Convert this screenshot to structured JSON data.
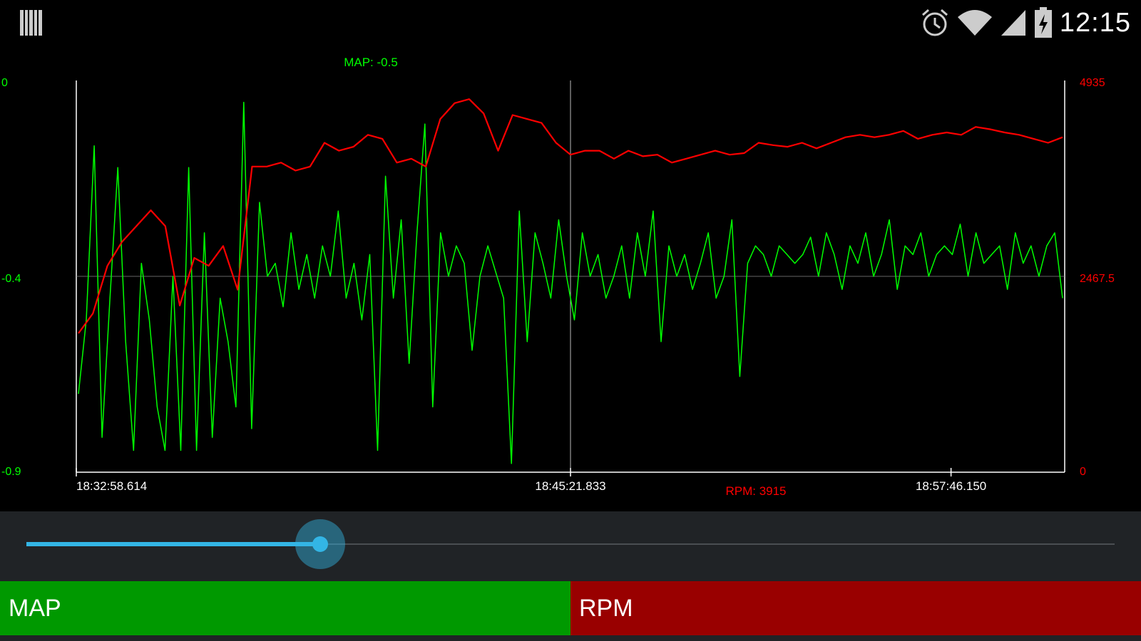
{
  "status_bar": {
    "time": "12:15",
    "icons": [
      "barcode-icon",
      "alarm-icon",
      "wifi-icon",
      "signal-icon",
      "battery-charging-icon"
    ],
    "colors": {
      "background": "#000000",
      "icon": "#cccccc"
    }
  },
  "chart_data": {
    "type": "line",
    "x_ticks": [
      "18:32:58.614",
      "18:45:21.833",
      "18:57:46.150"
    ],
    "left_axis": {
      "ticks": [
        "0",
        "-0.4",
        "-0.9"
      ],
      "ylim": [
        -0.9,
        0
      ],
      "color": "#00ff00"
    },
    "right_axis": {
      "ticks": [
        "4935",
        "2467.5",
        "0"
      ],
      "ylim": [
        0,
        4935
      ],
      "color": "#ff0000"
    },
    "cursor_labels": {
      "map": "MAP: -0.5",
      "rpm": "RPM: 3915"
    },
    "series": [
      {
        "name": "MAP",
        "color": "#00ff00",
        "axis": "left",
        "values": [
          -0.72,
          -0.55,
          -0.15,
          -0.82,
          -0.5,
          -0.2,
          -0.6,
          -0.85,
          -0.42,
          -0.55,
          -0.75,
          -0.85,
          -0.45,
          -0.85,
          -0.2,
          -0.85,
          -0.35,
          -0.82,
          -0.5,
          -0.6,
          -0.75,
          -0.05,
          -0.8,
          -0.28,
          -0.45,
          -0.42,
          -0.52,
          -0.35,
          -0.48,
          -0.4,
          -0.5,
          -0.38,
          -0.45,
          -0.3,
          -0.5,
          -0.42,
          -0.55,
          -0.4,
          -0.85,
          -0.22,
          -0.5,
          -0.32,
          -0.65,
          -0.35,
          -0.1,
          -0.75,
          -0.35,
          -0.45,
          -0.38,
          -0.42,
          -0.62,
          -0.45,
          -0.38,
          -0.44,
          -0.5,
          -0.88,
          -0.3,
          -0.6,
          -0.35,
          -0.42,
          -0.5,
          -0.32,
          -0.45,
          -0.55,
          -0.35,
          -0.45,
          -0.4,
          -0.5,
          -0.45,
          -0.38,
          -0.5,
          -0.35,
          -0.45,
          -0.3,
          -0.6,
          -0.38,
          -0.45,
          -0.4,
          -0.48,
          -0.42,
          -0.35,
          -0.5,
          -0.45,
          -0.32,
          -0.68,
          -0.42,
          -0.38,
          -0.4,
          -0.45,
          -0.38,
          -0.4,
          -0.42,
          -0.4,
          -0.36,
          -0.45,
          -0.35,
          -0.4,
          -0.48,
          -0.38,
          -0.42,
          -0.35,
          -0.45,
          -0.4,
          -0.32,
          -0.48,
          -0.38,
          -0.4,
          -0.35,
          -0.45,
          -0.4,
          -0.38,
          -0.4,
          -0.33,
          -0.45,
          -0.35,
          -0.42,
          -0.4,
          -0.38,
          -0.48,
          -0.35,
          -0.42,
          -0.38,
          -0.45,
          -0.38,
          -0.35,
          -0.5
        ]
      },
      {
        "name": "RPM",
        "color": "#ff0000",
        "axis": "right",
        "values": [
          1750,
          2000,
          2600,
          2900,
          3100,
          3300,
          3100,
          2100,
          2700,
          2600,
          2850,
          2300,
          3850,
          3850,
          3900,
          3800,
          3850,
          4150,
          4050,
          4100,
          4250,
          4200,
          3900,
          3950,
          3850,
          4450,
          4650,
          4700,
          4520,
          4050,
          4500,
          4450,
          4400,
          4150,
          4000,
          4050,
          4050,
          3950,
          4050,
          3980,
          4000,
          3900,
          3950,
          4000,
          4050,
          4000,
          4020,
          4150,
          4120,
          4100,
          4150,
          4080,
          4150,
          4220,
          4250,
          4220,
          4250,
          4300,
          4200,
          4250,
          4280,
          4250,
          4350,
          4320,
          4280,
          4250,
          4200,
          4150,
          4220
        ]
      }
    ]
  },
  "slider": {
    "value": 0.27,
    "colors": {
      "track": "#4a4e52",
      "fill": "#33b5e5"
    }
  },
  "tabs": [
    {
      "label": "MAP",
      "color": "#009900"
    },
    {
      "label": "RPM",
      "color": "#990000"
    }
  ]
}
